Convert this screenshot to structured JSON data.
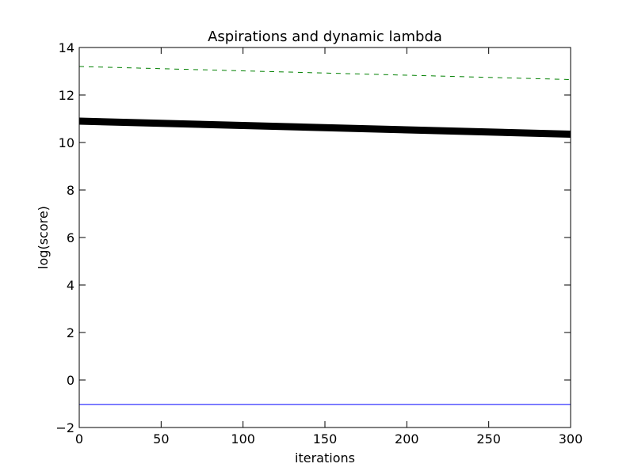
{
  "chart_data": {
    "type": "line",
    "title": "Aspirations and dynamic lambda",
    "xlabel": "iterations",
    "ylabel": "log(score)",
    "xlim": [
      0,
      300
    ],
    "ylim": [
      -2,
      14
    ],
    "x_ticks": [
      0,
      50,
      100,
      150,
      200,
      250,
      300
    ],
    "y_ticks": [
      -2,
      0,
      2,
      4,
      6,
      8,
      10,
      12,
      14
    ],
    "x_tick_labels": [
      "0",
      "50",
      "100",
      "150",
      "200",
      "250",
      "300"
    ],
    "y_tick_labels": [
      "−2",
      "0",
      "2",
      "4",
      "6",
      "8",
      "10",
      "12",
      "14"
    ],
    "grid": false,
    "series": [
      {
        "color": "#008000",
        "style": "dashed",
        "x": [
          0,
          300
        ],
        "y": [
          13.2,
          12.65
        ]
      },
      {
        "color": "#000000",
        "style": "thick",
        "x": [
          0,
          300
        ],
        "y": [
          10.9,
          10.35
        ]
      },
      {
        "color": "#0000ff",
        "style": "solid",
        "x": [
          0,
          300
        ],
        "y": [
          -1.03,
          -1.03
        ]
      }
    ]
  }
}
